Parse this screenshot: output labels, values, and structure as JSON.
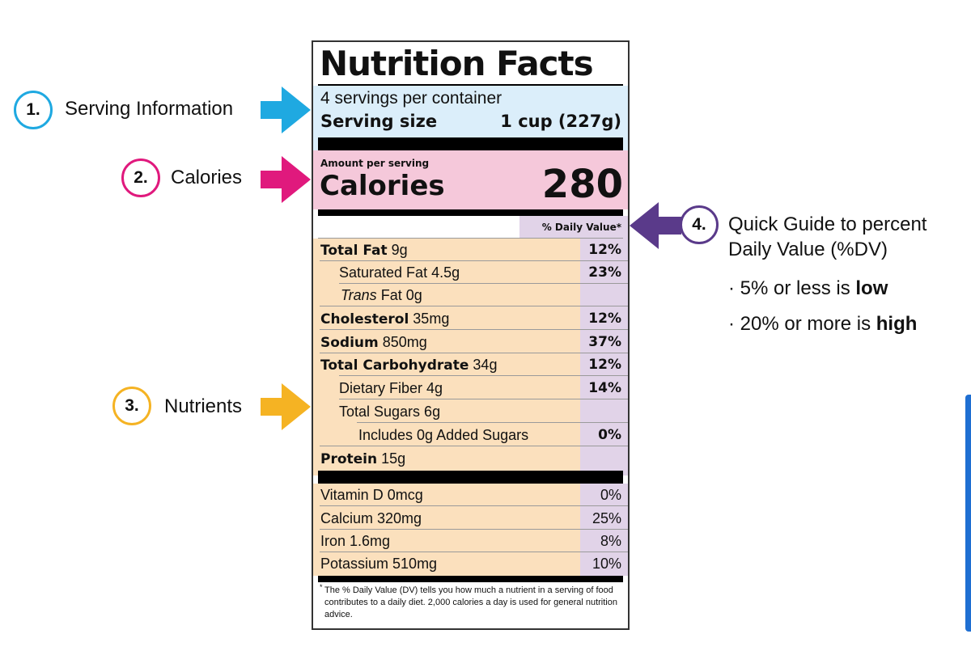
{
  "label": {
    "title": "Nutrition Facts",
    "servings_per_container": "4 servings per container",
    "serving_size_label": "Serving size",
    "serving_size_value": "1 cup (227g)",
    "amount_per_serving": "Amount per serving",
    "calories_label": "Calories",
    "calories_value": "280",
    "dv_header": "% Daily Value*",
    "nutrients": [
      {
        "name": "Total Fat",
        "amount": "9g",
        "dv": "12%"
      },
      {
        "name": "Saturated Fat 4.5g",
        "amount": "",
        "dv": "23%"
      },
      {
        "name": "Trans",
        "amount": "Fat 0g",
        "dv": ""
      },
      {
        "name": "Cholesterol",
        "amount": "35mg",
        "dv": "12%"
      },
      {
        "name": "Sodium",
        "amount": "850mg",
        "dv": "37%"
      },
      {
        "name": "Total Carbohydrate",
        "amount": "34g",
        "dv": "12%"
      },
      {
        "name": "Dietary Fiber 4g",
        "amount": "",
        "dv": "14%"
      },
      {
        "name": "Total Sugars 6g",
        "amount": "",
        "dv": ""
      },
      {
        "name": "Includes 0g Added Sugars",
        "amount": "",
        "dv": "0%"
      },
      {
        "name": "Protein",
        "amount": "15g",
        "dv": ""
      }
    ],
    "vitamins": [
      {
        "name": "Vitamin D 0mcg",
        "dv": "0%"
      },
      {
        "name": "Calcium 320mg",
        "dv": "25%"
      },
      {
        "name": "Iron 1.6mg",
        "dv": "8%"
      },
      {
        "name": "Potassium 510mg",
        "dv": "10%"
      }
    ],
    "footnote_mark": "*",
    "footnote": "The % Daily Value (DV) tells you how much a nutrient in a serving of food contributes to a daily diet. 2,000 calories a day is used for general nutrition advice."
  },
  "callouts": {
    "serving": {
      "number": "1.",
      "text": "Serving Information",
      "color": "#1fa9e1"
    },
    "calories": {
      "number": "2.",
      "text": "Calories",
      "color": "#e0197d"
    },
    "nutrients": {
      "number": "3.",
      "text": "Nutrients",
      "color": "#f5b323"
    },
    "dv_guide": {
      "number": "4.",
      "line1": "Quick Guide to percent",
      "line2": "Daily Value (%DV)",
      "bullet1_pre": "5% or less is ",
      "bullet1_strong": "low",
      "bullet2_pre": "20% or more is ",
      "bullet2_strong": "high",
      "color": "#5a3a8a"
    }
  }
}
